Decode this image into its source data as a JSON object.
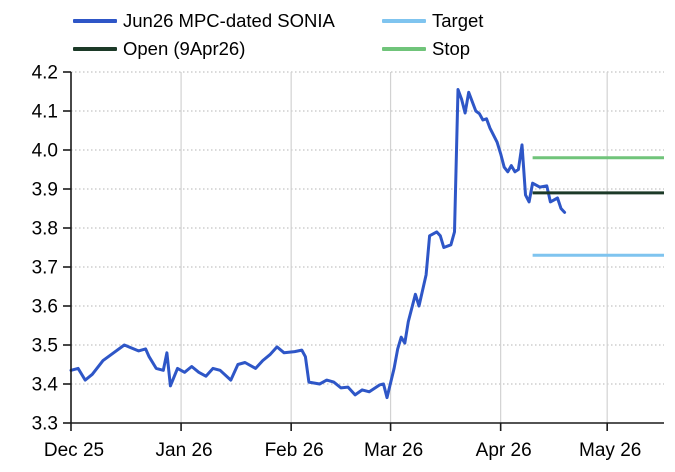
{
  "chart_data": {
    "type": "line",
    "title": "",
    "legend_position": "top",
    "grid": {
      "horizontal": "dotted",
      "vertical": "solid"
    },
    "x_axis": {
      "ticks": [
        {
          "label": "Dec 25",
          "date": "2025-12-01"
        },
        {
          "label": "Jan 26",
          "date": "2026-01-01"
        },
        {
          "label": "Feb 26",
          "date": "2026-02-01"
        },
        {
          "label": "Mar 26",
          "date": "2026-03-01"
        },
        {
          "label": "Apr 26",
          "date": "2026-04-01"
        },
        {
          "label": "May 26",
          "date": "2026-05-01"
        }
      ],
      "end_date": "2026-05-17"
    },
    "y_axis": {
      "min": 3.3,
      "max": 4.2,
      "tick_step": 0.1,
      "ticks": [
        "4.2",
        "4.1",
        "4.0",
        "3.9",
        "3.8",
        "3.7",
        "3.6",
        "3.5",
        "3.4",
        "3.3"
      ]
    },
    "series": [
      {
        "name": "Jun26 MPC-dated SONIA",
        "color": "#2e56c7",
        "points": [
          [
            "2025-12-01",
            3.435
          ],
          [
            "2025-12-03",
            3.44
          ],
          [
            "2025-12-05",
            3.41
          ],
          [
            "2025-12-07",
            3.425
          ],
          [
            "2025-12-10",
            3.46
          ],
          [
            "2025-12-13",
            3.48
          ],
          [
            "2025-12-16",
            3.5
          ],
          [
            "2025-12-20",
            3.485
          ],
          [
            "2025-12-22",
            3.49
          ],
          [
            "2025-12-23",
            3.47
          ],
          [
            "2025-12-25",
            3.44
          ],
          [
            "2025-12-27",
            3.435
          ],
          [
            "2025-12-28",
            3.48
          ],
          [
            "2025-12-29",
            3.395
          ],
          [
            "2025-12-31",
            3.44
          ],
          [
            "2026-01-02",
            3.43
          ],
          [
            "2026-01-04",
            3.445
          ],
          [
            "2026-01-06",
            3.43
          ],
          [
            "2026-01-08",
            3.42
          ],
          [
            "2026-01-10",
            3.44
          ],
          [
            "2026-01-12",
            3.435
          ],
          [
            "2026-01-15",
            3.41
          ],
          [
            "2026-01-17",
            3.45
          ],
          [
            "2026-01-19",
            3.455
          ],
          [
            "2026-01-22",
            3.44
          ],
          [
            "2026-01-24",
            3.46
          ],
          [
            "2026-01-26",
            3.475
          ],
          [
            "2026-01-28",
            3.495
          ],
          [
            "2026-01-30",
            3.48
          ],
          [
            "2026-02-02",
            3.483
          ],
          [
            "2026-02-04",
            3.487
          ],
          [
            "2026-02-05",
            3.47
          ],
          [
            "2026-02-06",
            3.405
          ],
          [
            "2026-02-09",
            3.4
          ],
          [
            "2026-02-11",
            3.41
          ],
          [
            "2026-02-13",
            3.405
          ],
          [
            "2026-02-15",
            3.39
          ],
          [
            "2026-02-17",
            3.392
          ],
          [
            "2026-02-19",
            3.372
          ],
          [
            "2026-02-21",
            3.385
          ],
          [
            "2026-02-23",
            3.38
          ],
          [
            "2026-02-26",
            3.398
          ],
          [
            "2026-02-27",
            3.4
          ],
          [
            "2026-02-28",
            3.365
          ],
          [
            "2026-03-02",
            3.44
          ],
          [
            "2026-03-03",
            3.49
          ],
          [
            "2026-03-04",
            3.52
          ],
          [
            "2026-03-05",
            3.505
          ],
          [
            "2026-03-06",
            3.56
          ],
          [
            "2026-03-08",
            3.63
          ],
          [
            "2026-03-09",
            3.6
          ],
          [
            "2026-03-11",
            3.68
          ],
          [
            "2026-03-12",
            3.78
          ],
          [
            "2026-03-14",
            3.79
          ],
          [
            "2026-03-15",
            3.78
          ],
          [
            "2026-03-16",
            3.75
          ],
          [
            "2026-03-18",
            3.757
          ],
          [
            "2026-03-19",
            3.79
          ],
          [
            "2026-03-20",
            4.155
          ],
          [
            "2026-03-21",
            4.13
          ],
          [
            "2026-03-22",
            4.095
          ],
          [
            "2026-03-23",
            4.148
          ],
          [
            "2026-03-25",
            4.1
          ],
          [
            "2026-03-26",
            4.093
          ],
          [
            "2026-03-27",
            4.077
          ],
          [
            "2026-03-28",
            4.08
          ],
          [
            "2026-03-29",
            4.056
          ],
          [
            "2026-03-31",
            4.02
          ],
          [
            "2026-04-01",
            3.99
          ],
          [
            "2026-04-02",
            3.956
          ],
          [
            "2026-04-03",
            3.944
          ],
          [
            "2026-04-04",
            3.96
          ],
          [
            "2026-04-05",
            3.944
          ],
          [
            "2026-04-06",
            3.95
          ],
          [
            "2026-04-07",
            4.013
          ],
          [
            "2026-04-08",
            3.885
          ],
          [
            "2026-04-09",
            3.867
          ],
          [
            "2026-04-10",
            3.915
          ],
          [
            "2026-04-12",
            3.905
          ],
          [
            "2026-04-14",
            3.908
          ],
          [
            "2026-04-15",
            3.867
          ],
          [
            "2026-04-17",
            3.877
          ],
          [
            "2026-04-18",
            3.85
          ],
          [
            "2026-04-19",
            3.84
          ]
        ]
      }
    ],
    "levels": [
      {
        "name": "Open (9Apr26)",
        "value": 3.89,
        "color": "#1c3a28",
        "from": "2026-04-10",
        "to": "2026-05-17"
      },
      {
        "name": "Target",
        "value": 3.73,
        "color": "#7fc4ef",
        "from": "2026-04-10",
        "to": "2026-05-17"
      },
      {
        "name": "Stop",
        "value": 3.98,
        "color": "#70c47a",
        "from": "2026-04-10",
        "to": "2026-05-17"
      }
    ]
  },
  "legend": {
    "columns": [
      [
        {
          "label": "Jun26 MPC-dated SONIA",
          "color": "#2e56c7"
        },
        {
          "label": "Open (9Apr26)",
          "color": "#1c3a28"
        }
      ],
      [
        {
          "label": "Target",
          "color": "#7fc4ef"
        },
        {
          "label": "Stop",
          "color": "#70c47a"
        }
      ]
    ]
  },
  "colors": {
    "axis": "#1a1a1a",
    "grid_horizontal": "#b5b5b5",
    "grid_vertical": "#d2d2d2",
    "text": "#000000"
  }
}
